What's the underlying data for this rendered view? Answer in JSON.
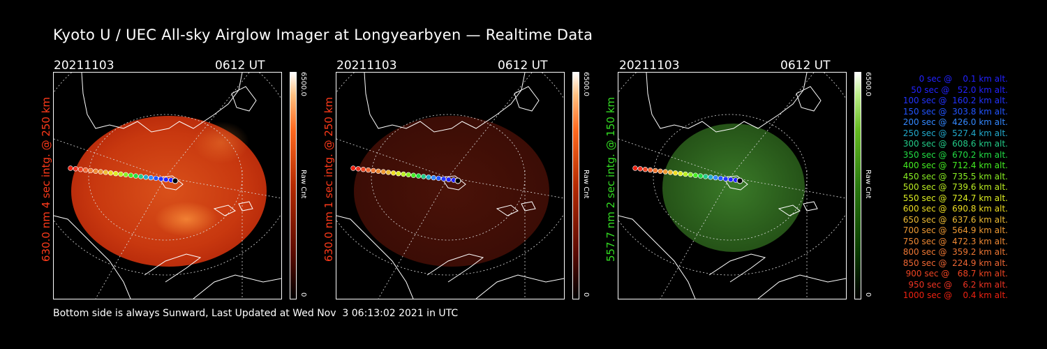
{
  "title": "Kyoto U / UEC All-sky Airglow Imager at Longyearbyen — Realtime Data",
  "panels": [
    {
      "date": "20211103",
      "time": "0612 UT",
      "ylabel": "630.0 nm 4 sec intg. @ 250 km",
      "color": "#ff3a1a",
      "cbar_max": "6500.0",
      "cbar_min": "0",
      "cbar_unit": "Raw Cnt",
      "brightness": "bright"
    },
    {
      "date": "20211103",
      "time": "0612 UT",
      "ylabel": "630.0 nm 1 sec intg. @ 250 km",
      "color": "#ff3a1a",
      "cbar_max": "6500.0",
      "cbar_min": "0",
      "cbar_unit": "Raw Cnt",
      "brightness": "dim"
    },
    {
      "date": "20211103",
      "time": "0612 UT",
      "ylabel": "557.7 nm 2 sec intg. @ 150 km",
      "color": "#33dd22",
      "cbar_max": "6500.0",
      "cbar_min": "0",
      "cbar_unit": "Raw Cnt",
      "brightness": "green"
    }
  ],
  "footer": "Bottom side is always Sunward, Last Updated at Wed Nov  3 06:13:02 2021 in UTC",
  "legend": [
    {
      "text": "   0 sec @    0.1 km alt.",
      "color": "#2222ff"
    },
    {
      "text": "  50 sec @   52.0 km alt.",
      "color": "#2222ff"
    },
    {
      "text": " 100 sec @  160.2 km alt.",
      "color": "#2233ff"
    },
    {
      "text": " 150 sec @  303.8 km alt.",
      "color": "#2255ff"
    },
    {
      "text": " 200 sec @  426.0 km alt.",
      "color": "#3388ff"
    },
    {
      "text": " 250 sec @  527.4 km alt.",
      "color": "#22aacc"
    },
    {
      "text": " 300 sec @  608.6 km alt.",
      "color": "#22cc88"
    },
    {
      "text": " 350 sec @  670.2 km alt.",
      "color": "#22dd44"
    },
    {
      "text": " 400 sec @  712.4 km alt.",
      "color": "#44ee22"
    },
    {
      "text": " 450 sec @  735.5 km alt.",
      "color": "#88ee22"
    },
    {
      "text": " 500 sec @  739.6 km alt.",
      "color": "#bbee22"
    },
    {
      "text": " 550 sec @  724.7 km alt.",
      "color": "#ddee22"
    },
    {
      "text": " 600 sec @  690.8 km alt.",
      "color": "#eedd22"
    },
    {
      "text": " 650 sec @  637.6 km alt.",
      "color": "#eebb33"
    },
    {
      "text": " 700 sec @  564.9 km alt.",
      "color": "#ee9933"
    },
    {
      "text": " 750 sec @  472.3 km alt.",
      "color": "#ee8833"
    },
    {
      "text": " 800 sec @  359.2 km alt.",
      "color": "#ee7733"
    },
    {
      "text": " 850 sec @  224.9 km alt.",
      "color": "#ee6633"
    },
    {
      "text": " 900 sec @   68.7 km alt.",
      "color": "#ee4422"
    },
    {
      "text": " 950 sec @    6.2 km alt.",
      "color": "#ee3322"
    },
    {
      "text": "1000 sec @    0.4 km alt.",
      "color": "#ee2211"
    }
  ]
}
